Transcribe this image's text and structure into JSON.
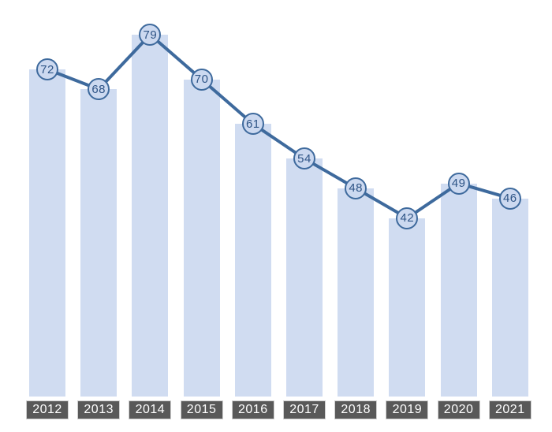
{
  "chart_data": {
    "type": "bar",
    "overlay_type": "line",
    "categories": [
      "2012",
      "2013",
      "2014",
      "2015",
      "2016",
      "2017",
      "2018",
      "2019",
      "2020",
      "2021"
    ],
    "values": [
      72,
      68,
      79,
      70,
      61,
      54,
      48,
      42,
      49,
      46
    ],
    "title": "",
    "xlabel": "",
    "ylabel": "",
    "ylim": [
      6,
      86
    ],
    "grid": false,
    "legend": false,
    "data_labels": "inside circular markers on line points",
    "colors": {
      "background": "#ffffff",
      "bar_fill": "#d0dcf1",
      "line": "#3e6a9d",
      "marker_fill": "#ccd9f0",
      "marker_text": "#2e5486",
      "x_label_bg": "#595959",
      "x_label_text": "#ffffff"
    }
  }
}
